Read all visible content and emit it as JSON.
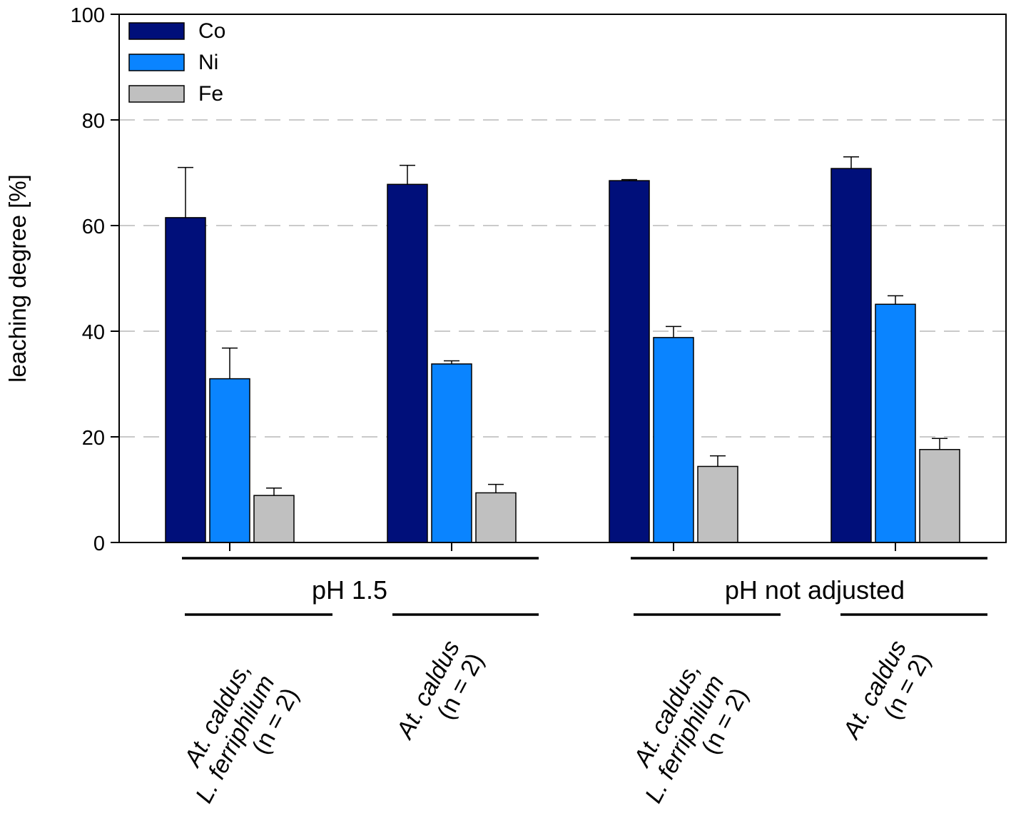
{
  "chart_data": {
    "type": "bar",
    "title": "",
    "xlabel": "",
    "ylabel": "leaching degree [%]",
    "ylim": [
      0,
      100
    ],
    "yticks": [
      0,
      20,
      40,
      60,
      80,
      100
    ],
    "grid": {
      "y": true,
      "style": "dashed",
      "lines_at": [
        20,
        40,
        60,
        80
      ]
    },
    "legend_position": "top-left",
    "categories": [
      [
        "At. caldus,",
        "L. ferriphilum",
        "(n = 2)"
      ],
      [
        "At. caldus",
        "(n = 2)"
      ],
      [
        "At. caldus,",
        "L. ferriphilum",
        "(n = 2)"
      ],
      [
        "At. caldus",
        "(n = 2)"
      ]
    ],
    "groups": [
      {
        "label": "pH 1.5",
        "categories": [
          0,
          1
        ]
      },
      {
        "label": "pH not adjusted",
        "categories": [
          2,
          3
        ]
      }
    ],
    "series": [
      {
        "name": "Co",
        "color": "#000f7a",
        "values": [
          61.5,
          67.8,
          68.5,
          70.8
        ],
        "errors": [
          9.5,
          3.6,
          0.2,
          2.2
        ]
      },
      {
        "name": "Ni",
        "color": "#0a84ff",
        "values": [
          31.0,
          33.8,
          38.8,
          45.1
        ],
        "errors": [
          5.8,
          0.6,
          2.1,
          1.6
        ]
      },
      {
        "name": "Fe",
        "color": "#c0c0c0",
        "values": [
          8.9,
          9.4,
          14.4,
          17.6
        ],
        "errors": [
          1.4,
          1.6,
          2.0,
          2.1
        ]
      }
    ]
  }
}
